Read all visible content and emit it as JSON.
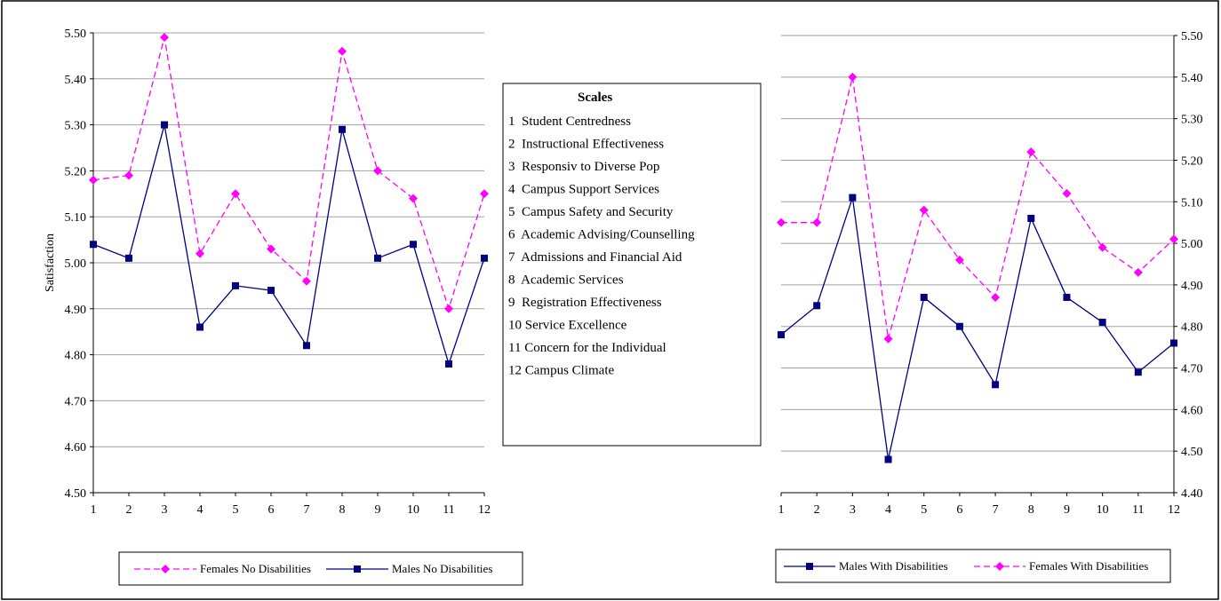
{
  "chart_data": [
    {
      "type": "line",
      "title": "",
      "xlabel": "",
      "ylabel": "Satisfaction",
      "ylim": [
        4.5,
        5.5
      ],
      "y_ticks": [
        "4.50",
        "4.60",
        "4.70",
        "4.80",
        "4.90",
        "5.00",
        "5.10",
        "5.20",
        "5.30",
        "5.40",
        "5.50"
      ],
      "y_axis_side": "left",
      "grid": true,
      "categories": [
        "1",
        "2",
        "3",
        "4",
        "5",
        "6",
        "7",
        "8",
        "9",
        "10",
        "11",
        "12"
      ],
      "legend_position": "bottom",
      "series": [
        {
          "name": "Females No Disabilities",
          "color": "#ff00ff",
          "style": "dashed",
          "marker": "diamond",
          "values": [
            5.18,
            5.19,
            5.49,
            5.02,
            5.15,
            5.03,
            4.96,
            5.46,
            5.2,
            5.14,
            4.9,
            5.15
          ]
        },
        {
          "name": "Males No Disabilities",
          "color": "#000080",
          "style": "solid",
          "marker": "square",
          "values": [
            5.04,
            5.01,
            5.3,
            4.86,
            4.95,
            4.94,
            4.82,
            5.29,
            5.01,
            5.04,
            4.78,
            5.01
          ]
        }
      ]
    },
    {
      "type": "line",
      "title": "",
      "xlabel": "",
      "ylabel": "",
      "ylim": [
        4.4,
        5.5
      ],
      "y_ticks": [
        "4.40",
        "4.50",
        "4.60",
        "4.70",
        "4.80",
        "4.90",
        "5.00",
        "5.10",
        "5.20",
        "5.30",
        "5.40",
        "5.50"
      ],
      "y_axis_side": "right",
      "grid": true,
      "categories": [
        "1",
        "2",
        "3",
        "4",
        "5",
        "6",
        "7",
        "8",
        "9",
        "10",
        "11",
        "12"
      ],
      "legend_position": "bottom",
      "series": [
        {
          "name": "Males With Disabilities",
          "color": "#000080",
          "style": "solid",
          "marker": "square",
          "values": [
            4.78,
            4.85,
            5.11,
            4.48,
            4.87,
            4.8,
            4.66,
            5.06,
            4.87,
            4.81,
            4.69,
            4.76
          ]
        },
        {
          "name": "Females With Disabilities",
          "color": "#ff00ff",
          "style": "dashed",
          "marker": "diamond",
          "values": [
            5.05,
            5.05,
            5.4,
            4.77,
            5.08,
            4.96,
            4.87,
            5.22,
            5.12,
            4.99,
            4.93,
            5.01
          ]
        }
      ]
    }
  ],
  "scales_box": {
    "title": "Scales",
    "items": [
      "1  Student Centredness",
      "2  Instructional Effectiveness",
      "3  Responsiv to Diverse Pop",
      "4  Campus Support Services",
      "5  Campus Safety and Security",
      "6  Academic Advising/Counselling",
      "7  Admissions and Financial Aid",
      "8  Academic Services",
      "9  Registration Effectiveness",
      "10 Service Excellence",
      "11 Concern for the Individual",
      "12 Campus Climate"
    ]
  }
}
